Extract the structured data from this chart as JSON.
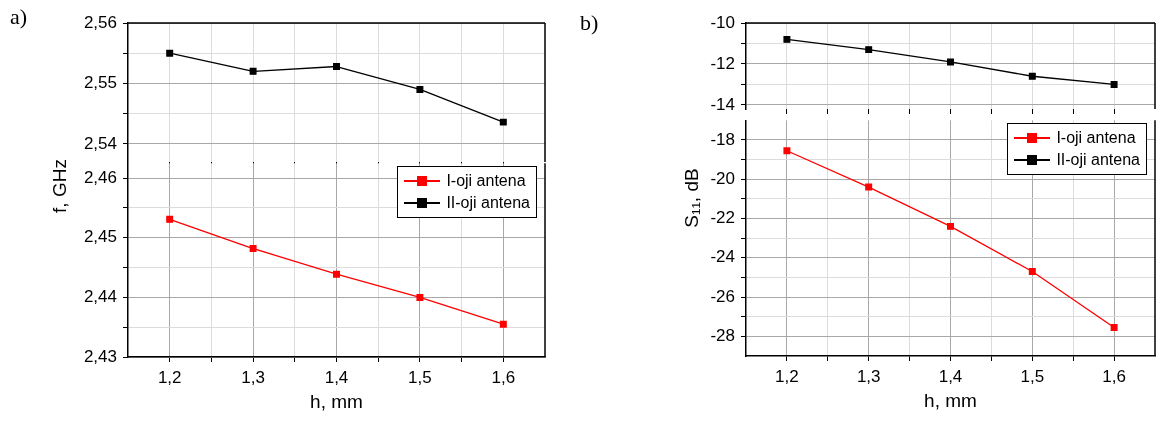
{
  "chart_data": [
    {
      "type": "line",
      "title": "a)",
      "x": [
        1.2,
        1.3,
        1.4,
        1.5,
        1.6
      ],
      "xlim": [
        1.15,
        1.65
      ],
      "xticks": [
        {
          "value": 1.2,
          "label": null
        },
        {
          "value": 1.25,
          "label": null
        },
        {
          "value": 1.3,
          "label": null
        },
        {
          "value": 1.35,
          "label": null
        },
        {
          "value": 1.4,
          "label": null
        },
        {
          "value": 1.45,
          "label": null
        },
        {
          "value": 1.5,
          "label": null
        },
        {
          "value": 1.55,
          "label": null
        },
        {
          "value": 1.6,
          "label": null
        }
      ],
      "ylim": [
        2.537,
        2.56
      ],
      "yticks": [
        {
          "value": 2.54,
          "label": "2,54"
        },
        {
          "value": 2.545,
          "label": null
        },
        {
          "value": 2.55,
          "label": "2,55"
        },
        {
          "value": 2.555,
          "label": null
        },
        {
          "value": 2.56,
          "label": "2,56"
        }
      ],
      "tick_labels": "y",
      "grid": true,
      "marker": "square",
      "line_style": "solid",
      "legend": false,
      "series": [
        {
          "color": "#000000",
          "values": [
            2.555,
            2.552,
            2.5528,
            2.549,
            2.5436
          ]
        }
      ]
    },
    {
      "type": "line",
      "xlabel": "h, mm",
      "ylabel": "f, GHz",
      "x": [
        1.2,
        1.3,
        1.4,
        1.5,
        1.6
      ],
      "xlim": [
        1.15,
        1.65
      ],
      "xticks": [
        {
          "value": 1.2,
          "label": "1,2"
        },
        {
          "value": 1.25,
          "label": null
        },
        {
          "value": 1.3,
          "label": "1,3"
        },
        {
          "value": 1.35,
          "label": null
        },
        {
          "value": 1.4,
          "label": "1,4"
        },
        {
          "value": 1.45,
          "label": null
        },
        {
          "value": 1.5,
          "label": "1,5"
        },
        {
          "value": 1.55,
          "label": null
        },
        {
          "value": 1.6,
          "label": "1,6"
        }
      ],
      "ylim": [
        2.43,
        2.4625
      ],
      "yticks": [
        {
          "value": 2.43,
          "label": "2,43"
        },
        {
          "value": 2.435,
          "label": null
        },
        {
          "value": 2.44,
          "label": "2,44"
        },
        {
          "value": 2.445,
          "label": null
        },
        {
          "value": 2.45,
          "label": "2,45"
        },
        {
          "value": 2.455,
          "label": null
        },
        {
          "value": 2.46,
          "label": "2,46"
        }
      ],
      "grid": true,
      "marker": "square",
      "line_style": "solid",
      "legend": "top right",
      "series": [
        {
          "name": "I-oji antena",
          "color": "#ff0000",
          "values": [
            2.4531,
            2.4482,
            2.4439,
            2.44,
            2.4355
          ]
        },
        {
          "name": "II-oji antena",
          "color": "#000000",
          "values": [
            null,
            null,
            null,
            null,
            null
          ]
        }
      ]
    },
    {
      "type": "line",
      "title": "b)",
      "x": [
        1.2,
        1.3,
        1.4,
        1.5,
        1.6
      ],
      "xlim": [
        1.15,
        1.65
      ],
      "xticks": [
        {
          "value": 1.2,
          "label": null
        },
        {
          "value": 1.25,
          "label": null
        },
        {
          "value": 1.3,
          "label": null
        },
        {
          "value": 1.35,
          "label": null
        },
        {
          "value": 1.4,
          "label": null
        },
        {
          "value": 1.45,
          "label": null
        },
        {
          "value": 1.5,
          "label": null
        },
        {
          "value": 1.55,
          "label": null
        },
        {
          "value": 1.6,
          "label": null
        }
      ],
      "ylim": [
        -14.2,
        -10
      ],
      "yticks": [
        -14,
        {
          "value": -13,
          "label": null
        },
        -12,
        {
          "value": -11,
          "label": null
        },
        -10
      ],
      "tick_labels": "y",
      "grid": true,
      "marker": "square",
      "line_style": "solid",
      "legend": false,
      "series": [
        {
          "color": "#000000",
          "values": [
            -10.8,
            -11.3,
            -11.9,
            -12.6,
            -13.0
          ]
        }
      ]
    },
    {
      "type": "line",
      "xlabel": "h, mm",
      "ylabel": "S₁₁, dB",
      "x": [
        1.2,
        1.3,
        1.4,
        1.5,
        1.6
      ],
      "xlim": [
        1.15,
        1.65
      ],
      "xticks": [
        {
          "value": 1.2,
          "label": "1,2"
        },
        {
          "value": 1.25,
          "label": null
        },
        {
          "value": 1.3,
          "label": "1,3"
        },
        {
          "value": 1.35,
          "label": null
        },
        {
          "value": 1.4,
          "label": "1,4"
        },
        {
          "value": 1.45,
          "label": null
        },
        {
          "value": 1.5,
          "label": "1,5"
        },
        {
          "value": 1.55,
          "label": null
        },
        {
          "value": 1.6,
          "label": "1,6"
        }
      ],
      "ylim": [
        -29,
        -17
      ],
      "yticks": [
        -28,
        {
          "value": -27,
          "label": null
        },
        -26,
        {
          "value": -25,
          "label": null
        },
        -24,
        {
          "value": -23,
          "label": null
        },
        -22,
        {
          "value": -21,
          "label": null
        },
        -20,
        {
          "value": -19,
          "label": null
        },
        -18
      ],
      "grid": true,
      "marker": "square",
      "line_style": "solid",
      "legend": "top right",
      "series": [
        {
          "name": "I-oji antena",
          "color": "#ff0000",
          "values": [
            -18.55,
            -20.4,
            -22.4,
            -24.7,
            -27.55
          ]
        },
        {
          "name": "II-oji antena",
          "color": "#000000",
          "values": [
            null,
            null,
            null,
            null,
            null
          ]
        }
      ]
    }
  ]
}
